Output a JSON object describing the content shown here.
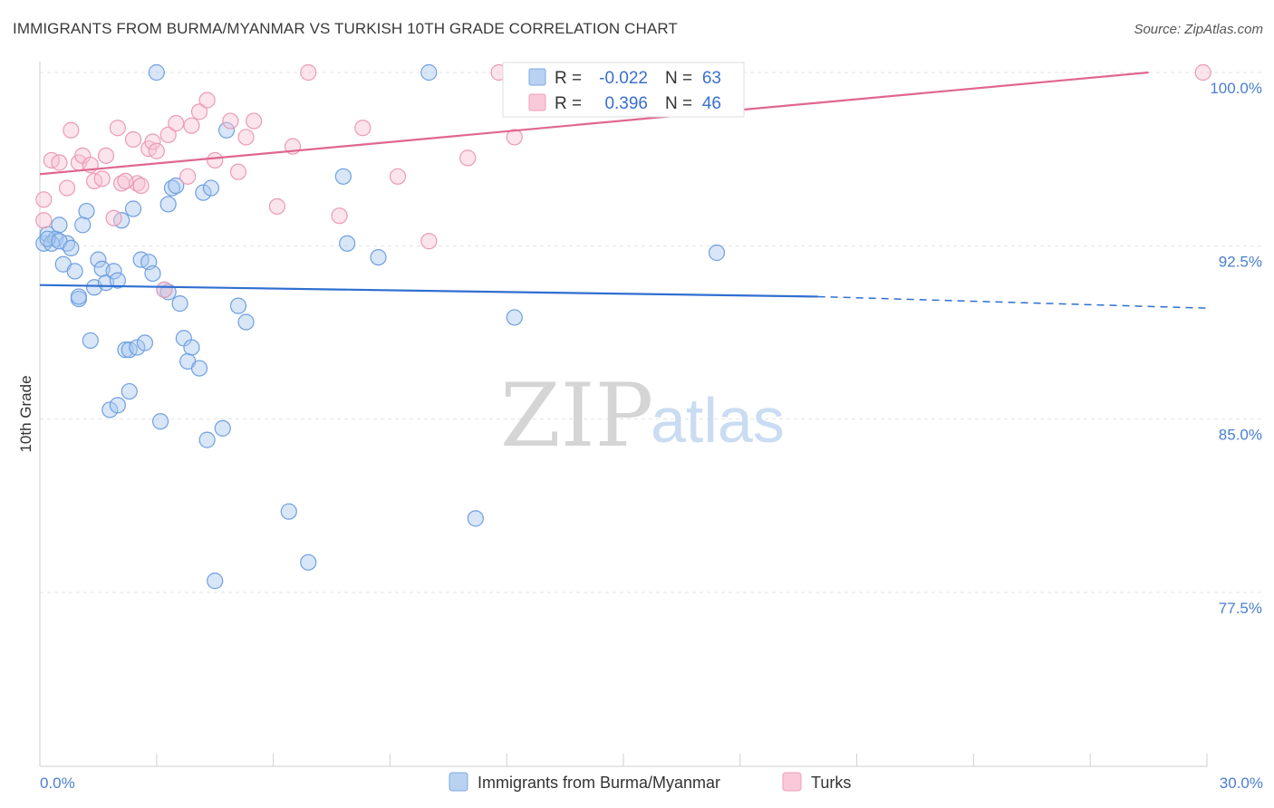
{
  "header": {
    "title": "IMMIGRANTS FROM BURMA/MYANMAR VS TURKISH 10TH GRADE CORRELATION CHART",
    "source": "Source: ZipAtlas.com"
  },
  "watermark": {
    "zip": "ZIP",
    "atlas": "atlas"
  },
  "stats": {
    "r_label": "R =",
    "n_label": "N =",
    "rows": [
      {
        "series": "Immigrants from Burma/Myanmar",
        "r": "-0.022",
        "n": "63"
      },
      {
        "series": "Turks",
        "r": "0.396",
        "n": "46"
      }
    ]
  },
  "chart_data": {
    "type": "scatter",
    "title": "IMMIGRANTS FROM BURMA/MYANMAR VS TURKISH 10TH GRADE CORRELATION CHART",
    "xlabel": "",
    "ylabel": "10th Grade",
    "xlim": [
      0,
      30
    ],
    "ylim": [
      70.0,
      101.5
    ],
    "x_tick_labels": [
      "0.0%",
      "30.0%"
    ],
    "x_tick_values": [
      0,
      30
    ],
    "x_minor_ticks": [
      3,
      6,
      9,
      12,
      15,
      18,
      21,
      24,
      27,
      30
    ],
    "y_tick_labels": [
      "100.0%",
      "92.5%",
      "85.0%",
      "77.5%"
    ],
    "y_tick_values": [
      100.0,
      92.5,
      85.0,
      77.5
    ],
    "grid": true,
    "legend_position": "bottom-center",
    "series": [
      {
        "name": "Immigrants from Burma/Myanmar",
        "color": "#6fa0e0",
        "fill": "#a9c8f0",
        "trend": {
          "x": [
            0,
            20
          ],
          "y": [
            90.8,
            90.3
          ],
          "dashed_to": [
            30,
            89.8
          ],
          "color": "#2f6fd0"
        },
        "points": [
          [
            0.1,
            92.6
          ],
          [
            0.2,
            93.0
          ],
          [
            0.4,
            92.8
          ],
          [
            0.5,
            93.4
          ],
          [
            0.3,
            92.6
          ],
          [
            0.7,
            92.6
          ],
          [
            0.6,
            91.7
          ],
          [
            0.9,
            91.4
          ],
          [
            1.0,
            90.2
          ],
          [
            1.1,
            93.4
          ],
          [
            1.2,
            94.0
          ],
          [
            1.3,
            88.4
          ],
          [
            1.4,
            90.7
          ],
          [
            1.5,
            91.9
          ],
          [
            1.6,
            91.5
          ],
          [
            1.7,
            90.9
          ],
          [
            1.8,
            85.4
          ],
          [
            1.9,
            91.4
          ],
          [
            2.0,
            91.0
          ],
          [
            2.0,
            85.6
          ],
          [
            2.1,
            93.6
          ],
          [
            2.2,
            88.0
          ],
          [
            2.3,
            88.0
          ],
          [
            2.3,
            86.2
          ],
          [
            2.4,
            94.1
          ],
          [
            2.5,
            88.1
          ],
          [
            2.6,
            91.9
          ],
          [
            2.7,
            88.3
          ],
          [
            2.8,
            91.8
          ],
          [
            2.9,
            91.3
          ],
          [
            3.0,
            100.0
          ],
          [
            3.1,
            84.9
          ],
          [
            3.2,
            90.6
          ],
          [
            3.3,
            94.3
          ],
          [
            3.3,
            90.5
          ],
          [
            3.4,
            95.0
          ],
          [
            3.5,
            95.1
          ],
          [
            3.6,
            90.0
          ],
          [
            3.7,
            88.5
          ],
          [
            3.8,
            87.5
          ],
          [
            3.9,
            88.1
          ],
          [
            4.1,
            87.2
          ],
          [
            4.2,
            94.8
          ],
          [
            4.3,
            84.1
          ],
          [
            4.4,
            95.0
          ],
          [
            4.5,
            78.0
          ],
          [
            4.7,
            84.6
          ],
          [
            4.8,
            97.5
          ],
          [
            5.1,
            89.9
          ],
          [
            5.3,
            89.2
          ],
          [
            6.4,
            81.0
          ],
          [
            6.9,
            78.8
          ],
          [
            7.8,
            95.5
          ],
          [
            7.9,
            92.6
          ],
          [
            8.7,
            92.0
          ],
          [
            10.0,
            100.0
          ],
          [
            11.2,
            80.7
          ],
          [
            12.2,
            89.4
          ],
          [
            17.4,
            92.2
          ],
          [
            0.2,
            92.8
          ],
          [
            0.5,
            92.7
          ],
          [
            0.8,
            92.4
          ],
          [
            1.0,
            90.3
          ]
        ]
      },
      {
        "name": "Turks",
        "color": "#eb9ab5",
        "fill": "#f7c3d4",
        "trend": {
          "x": [
            0,
            28.5
          ],
          "y": [
            95.6,
            100.0
          ],
          "color": "#e0668f"
        },
        "points": [
          [
            0.1,
            94.5
          ],
          [
            0.1,
            93.6
          ],
          [
            0.3,
            96.2
          ],
          [
            0.5,
            96.1
          ],
          [
            0.7,
            95.0
          ],
          [
            0.8,
            97.5
          ],
          [
            1.0,
            96.1
          ],
          [
            1.1,
            96.4
          ],
          [
            1.3,
            96.0
          ],
          [
            1.4,
            95.3
          ],
          [
            1.6,
            95.4
          ],
          [
            1.7,
            96.4
          ],
          [
            1.9,
            93.7
          ],
          [
            2.0,
            97.6
          ],
          [
            2.1,
            95.2
          ],
          [
            2.4,
            97.1
          ],
          [
            2.5,
            95.2
          ],
          [
            2.6,
            95.1
          ],
          [
            2.8,
            96.7
          ],
          [
            2.9,
            97.0
          ],
          [
            3.0,
            96.6
          ],
          [
            3.2,
            90.6
          ],
          [
            3.3,
            97.3
          ],
          [
            3.5,
            97.8
          ],
          [
            3.8,
            95.5
          ],
          [
            3.9,
            97.7
          ],
          [
            4.1,
            98.3
          ],
          [
            4.3,
            98.8
          ],
          [
            4.5,
            96.2
          ],
          [
            4.9,
            97.9
          ],
          [
            5.1,
            95.7
          ],
          [
            5.3,
            97.2
          ],
          [
            5.5,
            97.9
          ],
          [
            6.1,
            94.2
          ],
          [
            6.5,
            96.8
          ],
          [
            6.9,
            100.0
          ],
          [
            7.7,
            93.8
          ],
          [
            8.3,
            97.6
          ],
          [
            9.2,
            95.5
          ],
          [
            10.0,
            92.7
          ],
          [
            11.0,
            96.3
          ],
          [
            11.8,
            100.0
          ],
          [
            12.2,
            97.2
          ],
          [
            12.4,
            100.0
          ],
          [
            29.9,
            100.0
          ],
          [
            2.2,
            95.3
          ]
        ]
      }
    ]
  }
}
